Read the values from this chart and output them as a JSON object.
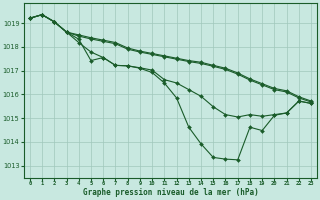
{
  "background_color": "#c8e8e0",
  "grid_color": "#a0c8bc",
  "line_color": "#1a5c2a",
  "title": "Graphe pression niveau de la mer (hPa)",
  "ylim": [
    1012.5,
    1019.85
  ],
  "yticks": [
    1013,
    1014,
    1015,
    1016,
    1017,
    1018,
    1019
  ],
  "hours": [
    0,
    1,
    2,
    3,
    4,
    5,
    6,
    7,
    8,
    9,
    10,
    11,
    12,
    13,
    14,
    15,
    16,
    17,
    18,
    19,
    20,
    21,
    22,
    23
  ],
  "lineA": [
    1019.2,
    1019.35,
    1019.05,
    1018.62,
    1018.5,
    1018.38,
    1018.28,
    1018.18,
    1017.95,
    1017.82,
    1017.72,
    1017.62,
    1017.52,
    1017.42,
    1017.35,
    1017.22,
    1017.1,
    1016.9,
    1016.65,
    1016.45,
    1016.25,
    1016.15,
    1015.9,
    1015.72
  ],
  "lineB": [
    1019.2,
    1019.35,
    1019.05,
    1018.62,
    1018.45,
    1018.33,
    1018.23,
    1018.13,
    1017.9,
    1017.78,
    1017.68,
    1017.58,
    1017.48,
    1017.38,
    1017.3,
    1017.18,
    1017.05,
    1016.85,
    1016.6,
    1016.4,
    1016.2,
    1016.1,
    1015.85,
    1015.68
  ],
  "lineC": [
    1019.2,
    1019.35,
    1019.05,
    1018.62,
    1018.18,
    1017.78,
    1017.55,
    1017.22,
    1017.2,
    1017.12,
    1017.02,
    1016.62,
    1016.48,
    1016.2,
    1015.92,
    1015.48,
    1015.15,
    1015.05,
    1015.15,
    1015.08,
    1015.15,
    1015.22,
    1015.72,
    1015.62
  ],
  "lineD": [
    1019.2,
    1019.35,
    1019.05,
    1018.62,
    1018.32,
    1017.42,
    1017.55,
    1017.22,
    1017.2,
    1017.1,
    1016.92,
    1016.48,
    1015.85,
    1014.62,
    1013.92,
    1013.35,
    1013.28,
    1013.25,
    1014.62,
    1014.48,
    1015.12,
    1015.22,
    1015.72,
    1015.62
  ]
}
